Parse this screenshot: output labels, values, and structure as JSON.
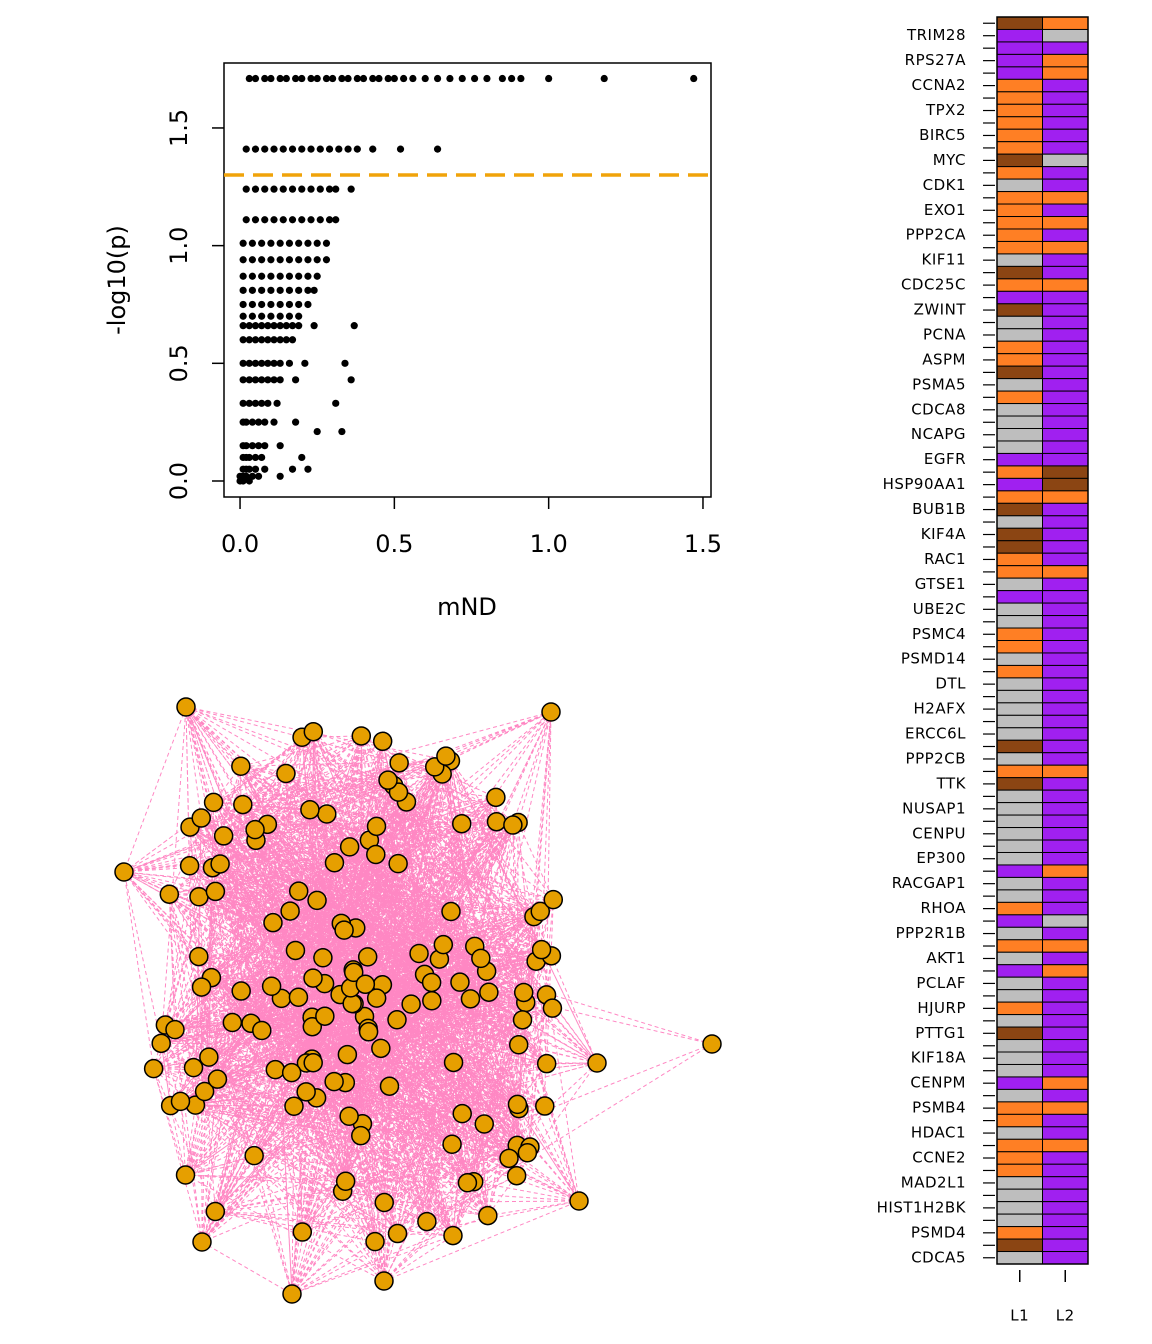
{
  "chart_data": [
    {
      "type": "scatter",
      "xlabel": "mND",
      "ylabel": "-log10(p)",
      "color": "#000000",
      "threshold": 1.3,
      "threshold_color": "#f0a30a",
      "xlim": [
        -0.052,
        1.526
      ],
      "ylim": [
        -0.068,
        1.776
      ],
      "xticks": [
        {
          "value": 0,
          "label": "0.0"
        },
        0.5,
        {
          "value": 1,
          "label": "1.0"
        },
        1.5
      ],
      "yticks": [
        {
          "value": 0,
          "label": "0.0"
        },
        0.5,
        {
          "value": 1,
          "label": "1.0"
        },
        1.5
      ],
      "x": [
        0.03,
        0.05,
        0.08,
        0.1,
        0.13,
        0.15,
        0.18,
        0.2,
        0.23,
        0.25,
        0.28,
        0.3,
        0.33,
        0.35,
        0.38,
        0.4,
        0.43,
        0.45,
        0.48,
        0.5,
        0.53,
        0.56,
        0.6,
        0.64,
        0.68,
        0.72,
        0.76,
        0.8,
        0.85,
        0.88,
        0.91,
        1.0,
        1.18,
        1.47,
        0.02,
        0.05,
        0.08,
        0.11,
        0.14,
        0.17,
        0.2,
        0.23,
        0.26,
        0.29,
        0.32,
        0.35,
        0.38,
        0.43,
        0.52,
        0.64,
        0.02,
        0.05,
        0.08,
        0.11,
        0.14,
        0.17,
        0.2,
        0.23,
        0.26,
        0.29,
        0.31,
        0.36,
        0.02,
        0.05,
        0.08,
        0.11,
        0.14,
        0.17,
        0.2,
        0.23,
        0.26,
        0.29,
        0.31,
        0.01,
        0.04,
        0.07,
        0.1,
        0.13,
        0.16,
        0.19,
        0.22,
        0.25,
        0.28,
        0.01,
        0.04,
        0.07,
        0.1,
        0.13,
        0.16,
        0.19,
        0.22,
        0.25,
        0.28,
        0.01,
        0.04,
        0.07,
        0.1,
        0.13,
        0.16,
        0.19,
        0.22,
        0.25,
        0.01,
        0.04,
        0.07,
        0.1,
        0.13,
        0.16,
        0.19,
        0.22,
        0.24,
        0.01,
        0.04,
        0.07,
        0.1,
        0.13,
        0.16,
        0.19,
        0.22,
        0.01,
        0.04,
        0.07,
        0.1,
        0.13,
        0.16,
        0.19,
        0.01,
        0.03,
        0.05,
        0.07,
        0.09,
        0.11,
        0.13,
        0.15,
        0.17,
        0.19,
        0.24,
        0.37,
        0.01,
        0.03,
        0.05,
        0.07,
        0.09,
        0.11,
        0.13,
        0.15,
        0.17,
        0.01,
        0.03,
        0.05,
        0.07,
        0.09,
        0.11,
        0.13,
        0.16,
        0.21,
        0.34,
        0.01,
        0.03,
        0.05,
        0.07,
        0.09,
        0.11,
        0.13,
        0.18,
        0.36,
        0.01,
        0.03,
        0.05,
        0.07,
        0.09,
        0.12,
        0.31,
        0.01,
        0.02,
        0.04,
        0.06,
        0.08,
        0.11,
        0.18,
        0.25,
        0.33,
        0.01,
        0.02,
        0.04,
        0.06,
        0.08,
        0.13,
        0.01,
        0.02,
        0.03,
        0.05,
        0.07,
        0.2,
        0.01,
        0.02,
        0.03,
        0.05,
        0.08,
        0.22,
        0.17,
        0.0,
        0.01,
        0.02,
        0.04,
        0.06,
        0.13,
        0.0,
        0.01,
        0.03
      ],
      "y": [
        1.71,
        1.71,
        1.71,
        1.71,
        1.71,
        1.71,
        1.71,
        1.71,
        1.71,
        1.71,
        1.71,
        1.71,
        1.71,
        1.71,
        1.71,
        1.71,
        1.71,
        1.71,
        1.71,
        1.71,
        1.71,
        1.71,
        1.71,
        1.71,
        1.71,
        1.71,
        1.71,
        1.71,
        1.71,
        1.71,
        1.71,
        1.71,
        1.71,
        1.71,
        1.41,
        1.41,
        1.41,
        1.41,
        1.41,
        1.41,
        1.41,
        1.41,
        1.41,
        1.41,
        1.41,
        1.41,
        1.41,
        1.41,
        1.41,
        1.41,
        1.24,
        1.24,
        1.24,
        1.24,
        1.24,
        1.24,
        1.24,
        1.24,
        1.24,
        1.24,
        1.24,
        1.24,
        1.11,
        1.11,
        1.11,
        1.11,
        1.11,
        1.11,
        1.11,
        1.11,
        1.11,
        1.11,
        1.11,
        1.01,
        1.01,
        1.01,
        1.01,
        1.01,
        1.01,
        1.01,
        1.01,
        1.01,
        1.01,
        0.94,
        0.94,
        0.94,
        0.94,
        0.94,
        0.94,
        0.94,
        0.94,
        0.94,
        0.94,
        0.87,
        0.87,
        0.87,
        0.87,
        0.87,
        0.87,
        0.87,
        0.87,
        0.87,
        0.81,
        0.81,
        0.81,
        0.81,
        0.81,
        0.81,
        0.81,
        0.81,
        0.81,
        0.75,
        0.75,
        0.75,
        0.75,
        0.75,
        0.75,
        0.75,
        0.75,
        0.7,
        0.7,
        0.7,
        0.7,
        0.7,
        0.7,
        0.7,
        0.66,
        0.66,
        0.66,
        0.66,
        0.66,
        0.66,
        0.66,
        0.66,
        0.66,
        0.66,
        0.66,
        0.66,
        0.6,
        0.6,
        0.6,
        0.6,
        0.6,
        0.6,
        0.6,
        0.6,
        0.6,
        0.5,
        0.5,
        0.5,
        0.5,
        0.5,
        0.5,
        0.5,
        0.5,
        0.5,
        0.5,
        0.43,
        0.43,
        0.43,
        0.43,
        0.43,
        0.43,
        0.43,
        0.43,
        0.43,
        0.33,
        0.33,
        0.33,
        0.33,
        0.33,
        0.33,
        0.33,
        0.25,
        0.25,
        0.25,
        0.25,
        0.25,
        0.25,
        0.25,
        0.21,
        0.21,
        0.15,
        0.15,
        0.15,
        0.15,
        0.15,
        0.15,
        0.1,
        0.1,
        0.1,
        0.1,
        0.1,
        0.1,
        0.05,
        0.05,
        0.05,
        0.05,
        0.05,
        0.05,
        0.05,
        0.02,
        0.02,
        0.02,
        0.02,
        0.02,
        0.02,
        0.0,
        0.0,
        0.0
      ]
    },
    {
      "type": "heatmap",
      "categories": [
        null,
        "TRIM28",
        null,
        "RPS27A",
        null,
        "CCNA2",
        null,
        "TPX2",
        null,
        "BIRC5",
        null,
        "MYC",
        null,
        "CDK1",
        null,
        "EXO1",
        null,
        "PPP2CA",
        null,
        "KIF11",
        null,
        "CDC25C",
        null,
        "ZWINT",
        null,
        "PCNA",
        null,
        "ASPM",
        null,
        "PSMA5",
        null,
        "CDCA8",
        null,
        "NCAPG",
        null,
        "EGFR",
        null,
        "HSP90AA1",
        null,
        "BUB1B",
        null,
        "KIF4A",
        null,
        "RAC1",
        null,
        "GTSE1",
        null,
        "UBE2C",
        null,
        "PSMC4",
        null,
        "PSMD14",
        null,
        "DTL",
        null,
        "H2AFX",
        null,
        "ERCC6L",
        null,
        "PPP2CB",
        null,
        "TTK",
        null,
        "NUSAP1",
        null,
        "CENPU",
        null,
        "EP300",
        null,
        "RACGAP1",
        null,
        "RHOA",
        null,
        "PPP2R1B",
        null,
        "AKT1",
        null,
        "PCLAF",
        null,
        "HJURP",
        null,
        "PTTG1",
        null,
        "KIF18A",
        null,
        "CENPM",
        null,
        "PSMB4",
        null,
        "HDAC1",
        null,
        "CCNE2",
        null,
        "MAD2L1",
        null,
        "HIST1H2BK",
        null,
        "PSMD4",
        null,
        "CDCA5"
      ],
      "series": [
        {
          "name": "L1",
          "values": [
            "#8b4513",
            "#a020f0",
            "#a020f0",
            "#a020f0",
            "#a020f0",
            "#ff7f24",
            "#ff7f24",
            "#ff7f24",
            "#ff7f24",
            "#ff7f24",
            "#ff7f24",
            "#8b4513",
            "#ff7f24",
            "#bebebe",
            "#ff7f24",
            "#ff7f24",
            "#ff7f24",
            "#ff7f24",
            "#ff7f24",
            "#bebebe",
            "#8b4513",
            "#ff7f24",
            "#a020f0",
            "#8b4513",
            "#bebebe",
            "#bebebe",
            "#ff7f24",
            "#ff7f24",
            "#8b4513",
            "#bebebe",
            "#ff7f24",
            "#bebebe",
            "#bebebe",
            "#bebebe",
            "#bebebe",
            "#a020f0",
            "#ff7f24",
            "#a020f0",
            "#ff7f24",
            "#8b4513",
            "#bebebe",
            "#8b4513",
            "#8b4513",
            "#ff7f24",
            "#ff7f24",
            "#bebebe",
            "#a020f0",
            "#bebebe",
            "#bebebe",
            "#ff7f24",
            "#ff7f24",
            "#bebebe",
            "#ff7f24",
            "#bebebe",
            "#bebebe",
            "#bebebe",
            "#bebebe",
            "#bebebe",
            "#8b4513",
            "#bebebe",
            "#ff7f24",
            "#8b4513",
            "#bebebe",
            "#bebebe",
            "#bebebe",
            "#bebebe",
            "#bebebe",
            "#bebebe",
            "#a020f0",
            "#bebebe",
            "#bebebe",
            "#ff7f24",
            "#a020f0",
            "#bebebe",
            "#ff7f24",
            "#bebebe",
            "#a020f0",
            "#bebebe",
            "#bebebe",
            "#ff7f24",
            "#bebebe",
            "#8b4513",
            "#bebebe",
            "#bebebe",
            "#bebebe",
            "#a020f0",
            "#bebebe",
            "#ff7f24",
            "#ff7f24",
            "#bebebe",
            "#ff7f24",
            "#ff7f24",
            "#ff7f24",
            "#bebebe",
            "#bebebe",
            "#bebebe",
            "#bebebe",
            "#ff7f24",
            "#8b4513",
            "#bebebe"
          ]
        },
        {
          "name": "L2",
          "values": [
            "#ff7f24",
            "#bebebe",
            "#a020f0",
            "#ff7f24",
            "#ff7f24",
            "#a020f0",
            "#a020f0",
            "#a020f0",
            "#a020f0",
            "#a020f0",
            "#a020f0",
            "#bebebe",
            "#a020f0",
            "#a020f0",
            "#ff7f24",
            "#a020f0",
            "#ff7f24",
            "#a020f0",
            "#ff7f24",
            "#a020f0",
            "#a020f0",
            "#ff7f24",
            "#a020f0",
            "#a020f0",
            "#a020f0",
            "#a020f0",
            "#a020f0",
            "#a020f0",
            "#a020f0",
            "#a020f0",
            "#a020f0",
            "#a020f0",
            "#a020f0",
            "#a020f0",
            "#a020f0",
            "#a020f0",
            "#8b4513",
            "#8b4513",
            "#ff7f24",
            "#a020f0",
            "#a020f0",
            "#a020f0",
            "#a020f0",
            "#a020f0",
            "#ff7f24",
            "#a020f0",
            "#a020f0",
            "#a020f0",
            "#a020f0",
            "#a020f0",
            "#a020f0",
            "#a020f0",
            "#a020f0",
            "#a020f0",
            "#a020f0",
            "#a020f0",
            "#a020f0",
            "#a020f0",
            "#a020f0",
            "#a020f0",
            "#ff7f24",
            "#a020f0",
            "#a020f0",
            "#a020f0",
            "#a020f0",
            "#a020f0",
            "#a020f0",
            "#a020f0",
            "#ff7f24",
            "#a020f0",
            "#a020f0",
            "#a020f0",
            "#bebebe",
            "#a020f0",
            "#ff7f24",
            "#a020f0",
            "#ff7f24",
            "#a020f0",
            "#a020f0",
            "#a020f0",
            "#a020f0",
            "#a020f0",
            "#a020f0",
            "#a020f0",
            "#a020f0",
            "#ff7f24",
            "#a020f0",
            "#ff7f24",
            "#a020f0",
            "#a020f0",
            "#ff7f24",
            "#a020f0",
            "#a020f0",
            "#a020f0",
            "#a020f0",
            "#a020f0",
            "#a020f0",
            "#a020f0",
            "#a020f0",
            "#a020f0"
          ]
        }
      ]
    }
  ]
}
